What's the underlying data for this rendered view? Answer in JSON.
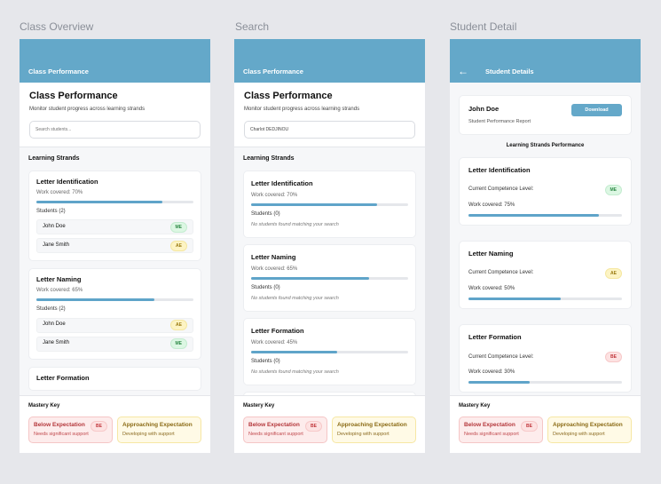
{
  "labels": [
    "Class Overview",
    "Search",
    "Student Detail"
  ],
  "colors": {
    "header": "#64a8c9",
    "progress": "#5fa4c9"
  },
  "class": {
    "header_title": "Class Performance",
    "title": "Class Performance",
    "subtitle": "Monitor student progress across learning strands",
    "search_placeholder": "Search students...",
    "section": "Learning Strands",
    "strands": [
      {
        "name": "Letter Identification",
        "work": "Work covered: 70%",
        "progress": 70,
        "students_label": "Students (2)",
        "students": [
          {
            "name": "John Doe",
            "level": "ME"
          },
          {
            "name": "Jane Smith",
            "level": "AE"
          }
        ]
      },
      {
        "name": "Letter Naming",
        "work": "Work covered: 65%",
        "progress": 65,
        "students_label": "Students (2)",
        "students": [
          {
            "name": "John Doe",
            "level": "AE"
          },
          {
            "name": "Jane Smith",
            "level": "ME"
          }
        ]
      },
      {
        "name": "Letter Formation"
      }
    ]
  },
  "search": {
    "header_title": "Class Performance",
    "title": "Class Performance",
    "subtitle": "Monitor student progress across learning strands",
    "search_value": "Charlot DEDJINOU",
    "section": "Learning Strands",
    "empty": "No students found matching your search",
    "strands": [
      {
        "name": "Letter Identification",
        "work": "Work covered: 70%",
        "progress": 70,
        "students_label": "Students (0)"
      },
      {
        "name": "Letter Naming",
        "work": "Work covered: 65%",
        "progress": 65,
        "students_label": "Students (0)"
      },
      {
        "name": "Letter Formation",
        "work": "Work covered: 45%",
        "progress": 45,
        "students_label": "Students (0)"
      }
    ]
  },
  "detail": {
    "header_title": "Student Details",
    "back_icon": "arrow-left",
    "student": "John Doe",
    "report": "Student Performance Report",
    "download": "Download",
    "section": "Learning Strands Performance",
    "competence_label": "Current Competence Level:",
    "strands": [
      {
        "name": "Letter Identification",
        "level": "ME",
        "work": "Work covered: 75%",
        "progress": 75
      },
      {
        "name": "Letter Naming",
        "level": "AE",
        "work": "Work covered: 50%",
        "progress": 50
      },
      {
        "name": "Letter Formation",
        "level": "BE",
        "work": "Work covered: 30%",
        "progress": 30
      }
    ]
  },
  "mastery": {
    "title": "Mastery Key",
    "items": [
      {
        "title": "Below Expectation",
        "desc": "Needs  significant support",
        "code": "BE"
      },
      {
        "title": "Approaching Expectation",
        "desc": "Developing with support"
      }
    ]
  }
}
